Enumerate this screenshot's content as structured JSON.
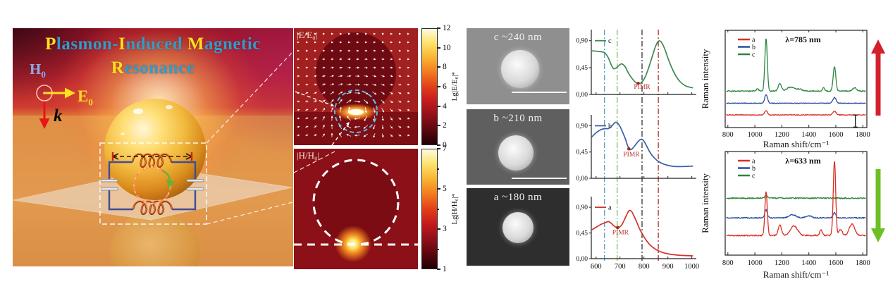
{
  "left_panel": {
    "title": {
      "l1": [
        {
          "t": "P",
          "c": "#ffe01e"
        },
        {
          "t": "lasmon-",
          "c": "#2f9dc9"
        },
        {
          "t": "I",
          "c": "#ffe01e"
        },
        {
          "t": "nduced ",
          "c": "#2f9dc9"
        },
        {
          "t": "M",
          "c": "#ffe01e"
        },
        {
          "t": "agnetic",
          "c": "#2f9dc9"
        }
      ],
      "l2": [
        {
          "t": "R",
          "c": "#ffe01e"
        },
        {
          "t": "esonance",
          "c": "#2f9dc9"
        }
      ]
    },
    "vectors": {
      "h": "H",
      "h_sub": "0",
      "e": "E",
      "e_sub": "0",
      "k": "k",
      "h_color": "#93a7e6",
      "e_color": "#ffd91f",
      "k_color": "#0a0a0a"
    }
  },
  "field_maps": {
    "e": {
      "label": "|E/E₀|",
      "colorbar": {
        "label": "Lg|E/E₀|⁴",
        "min": 0,
        "max": 12,
        "ticks": [
          0,
          2,
          4,
          6,
          8,
          10,
          12
        ],
        "minor": []
      }
    },
    "h": {
      "label": "|H/H₀|",
      "colorbar": {
        "label": "Lg|H/H₀|⁴",
        "min": 1,
        "max": 7,
        "ticks": [
          1,
          3,
          5,
          7
        ],
        "minor": [
          2,
          4,
          6
        ]
      }
    },
    "colormap": [
      "#200004",
      "#5c070e",
      "#90101a",
      "#c41a1c",
      "#e23f18",
      "#f37a1f",
      "#f9b332",
      "#fde26a",
      "#fffbe0"
    ]
  },
  "sem_images": [
    {
      "label": "c ~240 nm",
      "bg": "#8f8f8f",
      "sphere": 54,
      "scalebar": true
    },
    {
      "label": "b ~210 nm",
      "bg": "#5f5f5f",
      "sphere": 50,
      "scalebar": true
    },
    {
      "label": "a ~180 nm",
      "bg": "#2e2e2e",
      "sphere": 44,
      "scalebar": false
    }
  ],
  "chart_data": [
    {
      "id": "scattering-spectra",
      "type": "line",
      "x_range": [
        580,
        1010
      ],
      "x_ticks": [
        600,
        700,
        800,
        900,
        1000
      ],
      "y_max": 1.05,
      "y_values": [
        0,
        0.45,
        0.9
      ],
      "y_tick_labels": [
        "0,00",
        "0,45",
        "0,90"
      ],
      "pimr_text": "PIMR",
      "pimr_color": "#b5342c",
      "guide_lines": [
        {
          "x": 635,
          "color": "#5b9ec9"
        },
        {
          "x": 688,
          "color": "#7bbf4e"
        },
        {
          "x": 792,
          "color": "#333333"
        },
        {
          "x": 860,
          "color": "#a93226"
        }
      ],
      "plots": [
        {
          "name": "c",
          "color": "#3e8a4f",
          "pimr_dot": [
            776,
            0.185
          ],
          "pimr_label": [
            792,
            0.095
          ],
          "points": [
            [
              580,
              0.73
            ],
            [
              610,
              0.72
            ],
            [
              635,
              0.7
            ],
            [
              650,
              0.62
            ],
            [
              665,
              0.48
            ],
            [
              674,
              0.43
            ],
            [
              686,
              0.45
            ],
            [
              700,
              0.5
            ],
            [
              709,
              0.51
            ],
            [
              722,
              0.46
            ],
            [
              736,
              0.35
            ],
            [
              752,
              0.26
            ],
            [
              766,
              0.2
            ],
            [
              778,
              0.18
            ],
            [
              792,
              0.21
            ],
            [
              806,
              0.3
            ],
            [
              820,
              0.45
            ],
            [
              835,
              0.64
            ],
            [
              848,
              0.8
            ],
            [
              860,
              0.89
            ],
            [
              872,
              0.88
            ],
            [
              886,
              0.77
            ],
            [
              900,
              0.61
            ],
            [
              916,
              0.45
            ],
            [
              932,
              0.32
            ],
            [
              952,
              0.21
            ],
            [
              976,
              0.14
            ],
            [
              1005,
              0.11
            ]
          ]
        },
        {
          "name": "b",
          "color": "#3b5ea7",
          "pimr_dot": [
            737,
            0.505
          ],
          "pimr_label": [
            748,
            0.375
          ],
          "points": [
            [
              580,
              0.7
            ],
            [
              600,
              0.78
            ],
            [
              618,
              0.83
            ],
            [
              636,
              0.85
            ],
            [
              650,
              0.85
            ],
            [
              662,
              0.88
            ],
            [
              673,
              0.93
            ],
            [
              681,
              0.96
            ],
            [
              691,
              0.94
            ],
            [
              701,
              0.88
            ],
            [
              712,
              0.78
            ],
            [
              722,
              0.68
            ],
            [
              730,
              0.58
            ],
            [
              737,
              0.51
            ],
            [
              743,
              0.49
            ],
            [
              752,
              0.51
            ],
            [
              764,
              0.57
            ],
            [
              778,
              0.64
            ],
            [
              790,
              0.67
            ],
            [
              801,
              0.63
            ],
            [
              813,
              0.54
            ],
            [
              826,
              0.44
            ],
            [
              841,
              0.36
            ],
            [
              860,
              0.29
            ],
            [
              884,
              0.24
            ],
            [
              914,
              0.21
            ],
            [
              950,
              0.2
            ],
            [
              1005,
              0.21
            ]
          ]
        },
        {
          "name": "a",
          "color": "#d0342c",
          "pimr_dot": [
            690,
            0.545
          ],
          "pimr_label": [
            702,
            0.425
          ],
          "points": [
            [
              580,
              0.5
            ],
            [
              600,
              0.55
            ],
            [
              620,
              0.6
            ],
            [
              638,
              0.63
            ],
            [
              652,
              0.65
            ],
            [
              663,
              0.62
            ],
            [
              676,
              0.57
            ],
            [
              688,
              0.54
            ],
            [
              697,
              0.55
            ],
            [
              707,
              0.59
            ],
            [
              718,
              0.68
            ],
            [
              729,
              0.78
            ],
            [
              738,
              0.84
            ],
            [
              748,
              0.83
            ],
            [
              758,
              0.75
            ],
            [
              770,
              0.64
            ],
            [
              782,
              0.52
            ],
            [
              795,
              0.42
            ],
            [
              810,
              0.32
            ],
            [
              828,
              0.23
            ],
            [
              850,
              0.16
            ],
            [
              876,
              0.11
            ],
            [
              906,
              0.08
            ],
            [
              946,
              0.06
            ],
            [
              1005,
              0.05
            ]
          ]
        }
      ]
    },
    {
      "id": "raman-785",
      "type": "line",
      "annotation": "λ=785 nm",
      "xlabel": "Raman shift/cm⁻¹",
      "ylabel": "Raman intensity",
      "x_range": [
        780,
        1830
      ],
      "x_ticks": [
        800,
        1000,
        1200,
        1400,
        1600,
        1800
      ],
      "legend": [
        {
          "name": "a",
          "color": "#d93025"
        },
        {
          "name": "b",
          "color": "#2c4f9e"
        },
        {
          "name": "c",
          "color": "#2e8540"
        }
      ],
      "series": [
        {
          "name": "a",
          "color": "#d93025",
          "baseline": 0.13,
          "noise": 0.007,
          "peaks": [
            [
              1083,
              0.045,
              10
            ],
            [
              1590,
              0.04,
              12
            ]
          ]
        },
        {
          "name": "b",
          "color": "#2c4f9e",
          "baseline": 0.25,
          "noise": 0.007,
          "peaks": [
            [
              1083,
              0.09,
              10
            ],
            [
              1590,
              0.06,
              12
            ]
          ]
        },
        {
          "name": "c",
          "color": "#2e8540",
          "baseline": 0.375,
          "noise": 0.01,
          "peaks": [
            [
              1020,
              0.025,
              8
            ],
            [
              1083,
              0.54,
              9
            ],
            [
              1185,
              0.075,
              12
            ],
            [
              1265,
              0.04,
              28
            ],
            [
              1330,
              0.02,
              20
            ],
            [
              1510,
              0.035,
              8
            ],
            [
              1590,
              0.25,
              10
            ],
            [
              1740,
              0.035,
              14
            ]
          ]
        }
      ],
      "marker": {
        "x": 1745,
        "v0": 0.005,
        "v1": 0.13
      },
      "side_arrow": {
        "direction": "up",
        "color": "#d41f2c"
      }
    },
    {
      "id": "raman-633",
      "type": "line",
      "annotation": "λ=633 nm",
      "xlabel": "Raman shift/cm⁻¹",
      "ylabel": "Raman intensity",
      "x_range": [
        780,
        1830
      ],
      "x_ticks": [
        800,
        1000,
        1200,
        1400,
        1600,
        1800
      ],
      "legend": [
        {
          "name": "a",
          "color": "#d93025"
        },
        {
          "name": "b",
          "color": "#2c4f9e"
        },
        {
          "name": "c",
          "color": "#2e8540"
        }
      ],
      "series": [
        {
          "name": "c",
          "color": "#2e8540",
          "baseline": 0.55,
          "noise": 0.012,
          "peaks": [
            [
              1083,
              0.03,
              9
            ]
          ]
        },
        {
          "name": "b",
          "color": "#2c4f9e",
          "baseline": 0.36,
          "noise": 0.01,
          "peaks": [
            [
              1083,
              0.08,
              9
            ],
            [
              1280,
              0.03,
              25
            ],
            [
              1400,
              0.02,
              20
            ],
            [
              1590,
              0.05,
              10
            ]
          ]
        },
        {
          "name": "a",
          "color": "#d93025",
          "baseline": 0.19,
          "noise": 0.012,
          "peaks": [
            [
              1083,
              0.42,
              9
            ],
            [
              1185,
              0.1,
              12
            ],
            [
              1290,
              0.09,
              26
            ],
            [
              1490,
              0.05,
              10
            ],
            [
              1590,
              0.72,
              9
            ],
            [
              1635,
              0.06,
              12
            ],
            [
              1720,
              0.11,
              20
            ]
          ]
        }
      ],
      "side_arrow": {
        "direction": "down",
        "color": "#6cc024"
      }
    }
  ]
}
